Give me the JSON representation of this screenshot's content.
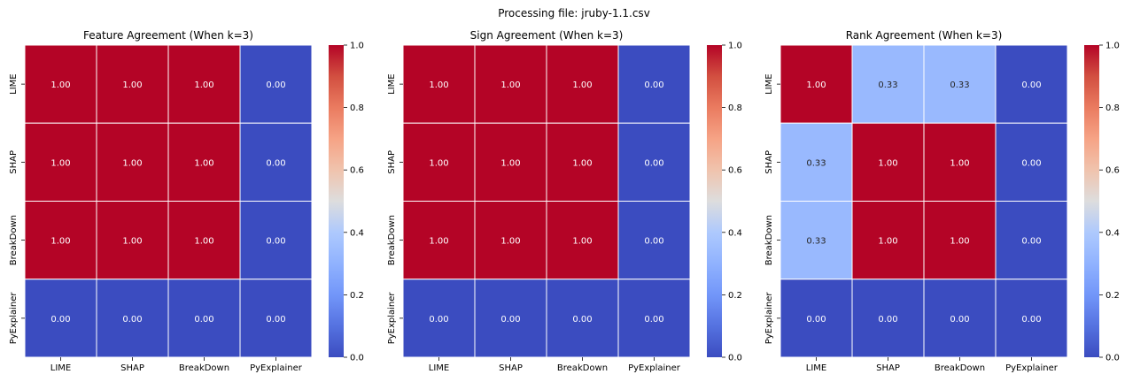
{
  "suptitle": "Processing file: jruby-1.1.csv",
  "chart_data": [
    {
      "type": "heatmap",
      "title": "Feature Agreement (When k=3)",
      "row_labels": [
        "LIME",
        "SHAP",
        "BreakDown",
        "PyExplainer"
      ],
      "col_labels": [
        "LIME",
        "SHAP",
        "BreakDown",
        "PyExplainer"
      ],
      "values": [
        [
          1.0,
          1.0,
          1.0,
          0.0
        ],
        [
          1.0,
          1.0,
          1.0,
          0.0
        ],
        [
          1.0,
          1.0,
          1.0,
          0.0
        ],
        [
          0.0,
          0.0,
          0.0,
          0.0
        ]
      ],
      "colormap": "coolwarm",
      "vmin": 0.0,
      "vmax": 1.0,
      "colorbar_ticks": [
        "0.0",
        "0.2",
        "0.4",
        "0.6",
        "0.8",
        "1.0"
      ]
    },
    {
      "type": "heatmap",
      "title": "Sign Agreement (When k=3)",
      "row_labels": [
        "LIME",
        "SHAP",
        "BreakDown",
        "PyExplainer"
      ],
      "col_labels": [
        "LIME",
        "SHAP",
        "BreakDown",
        "PyExplainer"
      ],
      "values": [
        [
          1.0,
          1.0,
          1.0,
          0.0
        ],
        [
          1.0,
          1.0,
          1.0,
          0.0
        ],
        [
          1.0,
          1.0,
          1.0,
          0.0
        ],
        [
          0.0,
          0.0,
          0.0,
          0.0
        ]
      ],
      "colormap": "coolwarm",
      "vmin": 0.0,
      "vmax": 1.0,
      "colorbar_ticks": [
        "0.0",
        "0.2",
        "0.4",
        "0.6",
        "0.8",
        "1.0"
      ]
    },
    {
      "type": "heatmap",
      "title": "Rank Agreement (When k=3)",
      "row_labels": [
        "LIME",
        "SHAP",
        "BreakDown",
        "PyExplainer"
      ],
      "col_labels": [
        "LIME",
        "SHAP",
        "BreakDown",
        "PyExplainer"
      ],
      "values": [
        [
          1.0,
          0.33,
          0.33,
          0.0
        ],
        [
          0.33,
          1.0,
          1.0,
          0.0
        ],
        [
          0.33,
          1.0,
          1.0,
          0.0
        ],
        [
          0.0,
          0.0,
          0.0,
          0.0
        ]
      ],
      "colormap": "coolwarm",
      "vmin": 0.0,
      "vmax": 1.0,
      "colorbar_ticks": [
        "0.0",
        "0.2",
        "0.4",
        "0.6",
        "0.8",
        "1.0"
      ]
    }
  ]
}
